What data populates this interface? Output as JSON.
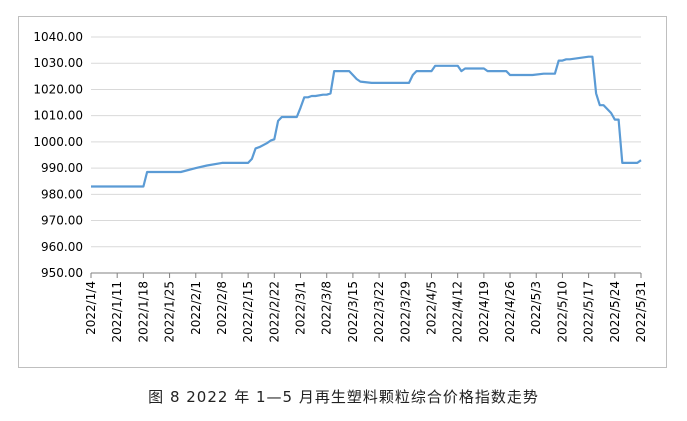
{
  "caption": "图 8  2022 年 1—5 月再生塑料颗粒综合价格指数走势",
  "chart_data": {
    "type": "line",
    "title": "",
    "xlabel": "",
    "ylabel": "",
    "ylim": [
      950,
      1040
    ],
    "yticks": [
      "950.00",
      "960.00",
      "970.00",
      "980.00",
      "990.00",
      "1000.00",
      "1010.00",
      "1020.00",
      "1030.00",
      "1040.00"
    ],
    "xticks": [
      "2022/1/4",
      "2022/1/11",
      "2022/1/18",
      "2022/1/25",
      "2022/2/1",
      "2022/2/8",
      "2022/2/15",
      "2022/2/22",
      "2022/3/1",
      "2022/3/8",
      "2022/3/15",
      "2022/3/22",
      "2022/3/29",
      "2022/4/5",
      "2022/4/12",
      "2022/4/19",
      "2022/4/26",
      "2022/5/3",
      "2022/5/10",
      "2022/5/17",
      "2022/5/24",
      "2022/5/31"
    ],
    "grid": "horizontal",
    "color": "#5b9bd5",
    "series": [
      {
        "x": [
          "2022/1/4",
          "2022/1/11",
          "2022/1/18",
          "2022/1/19",
          "2022/1/25",
          "2022/1/28",
          "2022/2/1",
          "2022/2/4",
          "2022/2/8",
          "2022/2/11",
          "2022/2/15",
          "2022/2/16",
          "2022/2/17",
          "2022/2/18",
          "2022/2/20",
          "2022/2/21",
          "2022/2/22",
          "2022/2/23",
          "2022/2/24",
          "2022/2/25",
          "2022/2/28",
          "2022/3/1",
          "2022/3/2",
          "2022/3/3",
          "2022/3/4",
          "2022/3/5",
          "2022/3/7",
          "2022/3/8",
          "2022/3/9",
          "2022/3/10",
          "2022/3/13",
          "2022/3/14",
          "2022/3/15",
          "2022/3/16",
          "2022/3/17",
          "2022/3/20",
          "2022/3/22",
          "2022/3/29",
          "2022/3/30",
          "2022/3/31",
          "2022/4/1",
          "2022/4/2",
          "2022/4/4",
          "2022/4/5",
          "2022/4/6",
          "2022/4/9",
          "2022/4/12",
          "2022/4/13",
          "2022/4/14",
          "2022/4/19",
          "2022/4/20",
          "2022/4/25",
          "2022/4/26",
          "2022/4/27",
          "2022/5/2",
          "2022/5/5",
          "2022/5/6",
          "2022/5/8",
          "2022/5/9",
          "2022/5/10",
          "2022/5/11",
          "2022/5/12",
          "2022/5/17",
          "2022/5/18",
          "2022/5/19",
          "2022/5/20",
          "2022/5/21",
          "2022/5/23",
          "2022/5/24",
          "2022/5/25",
          "2022/5/26",
          "2022/5/30",
          "2022/5/31"
        ],
        "values": [
          983,
          983,
          983,
          988.5,
          988.5,
          988.5,
          990,
          991,
          992,
          992,
          992,
          993.5,
          997.5,
          998,
          999.5,
          1000.5,
          1001,
          1008,
          1009.5,
          1009.5,
          1009.5,
          1013,
          1017,
          1017,
          1017.5,
          1017.5,
          1018,
          1018,
          1018.5,
          1027,
          1027,
          1027,
          1025.5,
          1024,
          1023,
          1022.5,
          1022.5,
          1022.5,
          1022.5,
          1025.5,
          1027,
          1027,
          1027,
          1027,
          1029,
          1029,
          1029,
          1027,
          1028,
          1028,
          1027,
          1027,
          1025.5,
          1025.5,
          1025.5,
          1026,
          1026,
          1026,
          1031,
          1031,
          1031.5,
          1031.5,
          1032.5,
          1032.5,
          1018.5,
          1014,
          1014,
          1011,
          1008.5,
          1008.5,
          992,
          992,
          993
        ]
      }
    ]
  }
}
